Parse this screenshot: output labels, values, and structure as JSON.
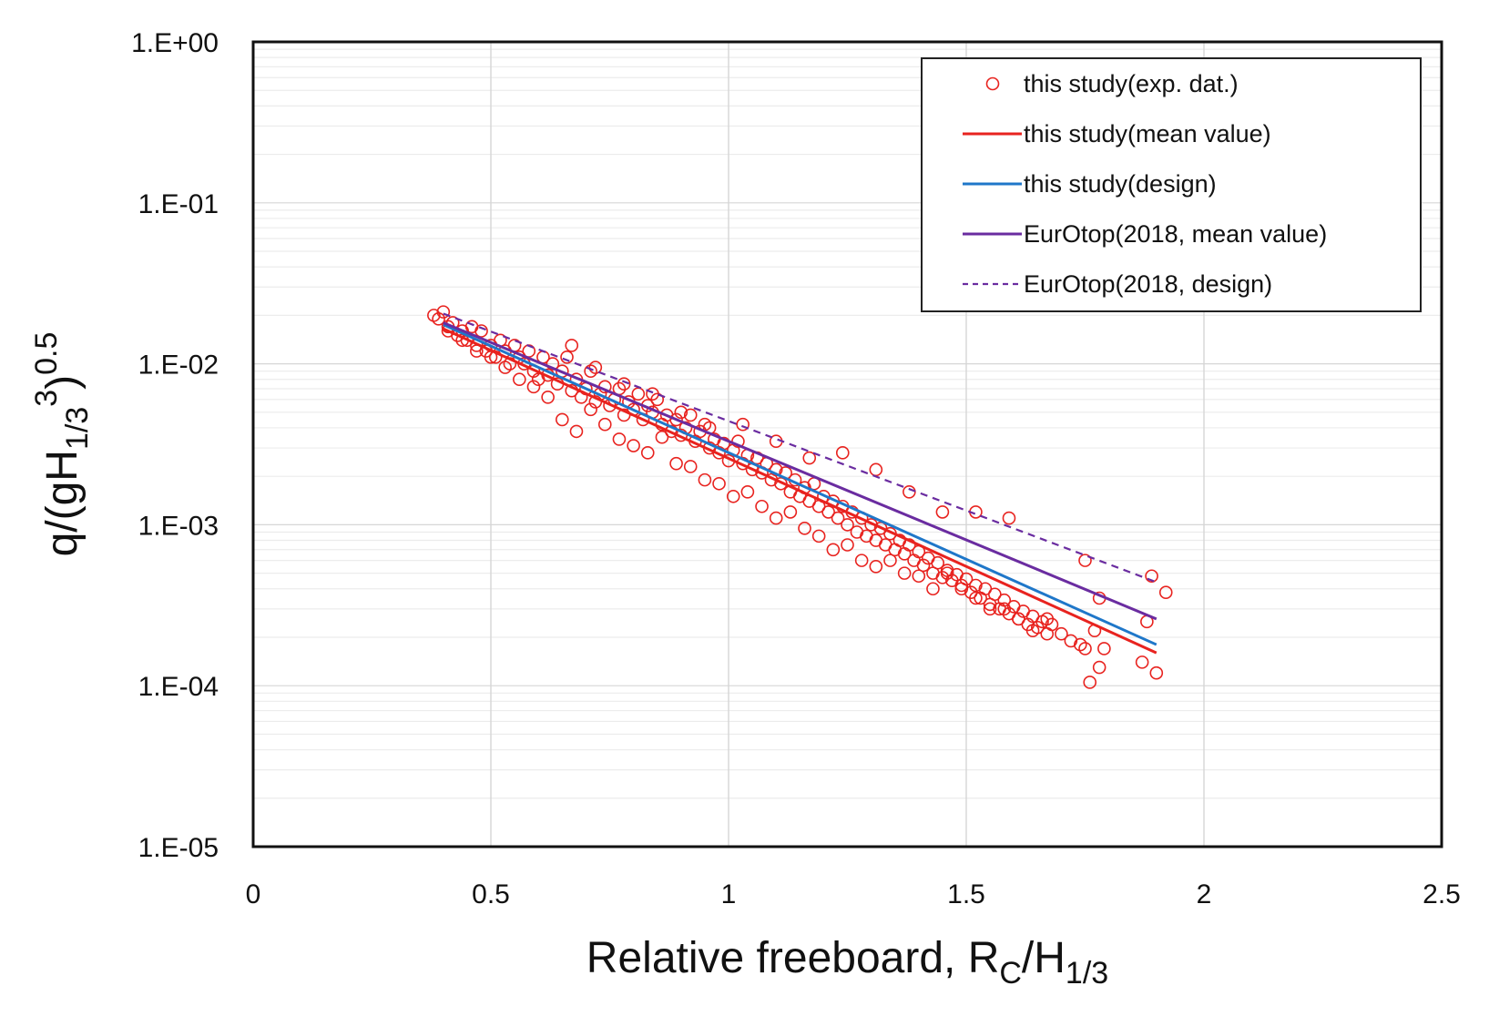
{
  "chart_data": {
    "type": "scatter",
    "ylog": true,
    "xlim": [
      0,
      2.5
    ],
    "ylim": [
      1e-05,
      1
    ],
    "xticks": [
      0,
      0.5,
      1,
      1.5,
      2,
      2.5
    ],
    "xtick_labels": [
      "0",
      "0.5",
      "1",
      "1.5",
      "2",
      "2.5"
    ],
    "yticks": [
      1,
      0.1,
      0.01,
      0.001,
      0.0001,
      1e-05
    ],
    "ytick_labels": [
      "1.E+00",
      "1.E-01",
      "1.E-02",
      "1.E-03",
      "1.E-04",
      "1.E-05"
    ],
    "xlabel": {
      "main": "Relative freeboard, R",
      "sub1": "C",
      "mid": "/H",
      "sub2": "1/3"
    },
    "ylabel": {
      "p1": "q/(gH",
      "sub": "1/3",
      "sup1": "3",
      "p2": ")",
      "sup2": "0.5"
    },
    "grid": true,
    "legend_position": "top-right",
    "colors": {
      "exp": "#e8231f",
      "mean": "#e8231f",
      "design": "#1f77c9",
      "eurotop": "#6a2ca0"
    },
    "series": [
      {
        "name": "this study(exp. dat.)",
        "kind": "scatter",
        "x": [
          0.38,
          0.39,
          0.4,
          0.41,
          0.42,
          0.43,
          0.44,
          0.45,
          0.46,
          0.47,
          0.48,
          0.49,
          0.5,
          0.51,
          0.52,
          0.53,
          0.54,
          0.55,
          0.56,
          0.57,
          0.58,
          0.59,
          0.6,
          0.61,
          0.62,
          0.63,
          0.64,
          0.65,
          0.66,
          0.67,
          0.68,
          0.69,
          0.7,
          0.71,
          0.72,
          0.73,
          0.74,
          0.75,
          0.76,
          0.77,
          0.78,
          0.79,
          0.8,
          0.81,
          0.82,
          0.83,
          0.84,
          0.85,
          0.86,
          0.87,
          0.88,
          0.89,
          0.9,
          0.91,
          0.92,
          0.93,
          0.94,
          0.95,
          0.96,
          0.97,
          0.98,
          0.99,
          1.0,
          1.01,
          1.02,
          1.03,
          1.04,
          1.05,
          1.06,
          1.07,
          1.08,
          1.09,
          1.1,
          1.11,
          1.12,
          1.13,
          1.14,
          1.15,
          1.16,
          1.17,
          1.18,
          1.19,
          1.2,
          1.21,
          1.22,
          1.23,
          1.24,
          1.25,
          1.26,
          1.27,
          1.28,
          1.29,
          1.3,
          1.31,
          1.32,
          1.33,
          1.34,
          1.35,
          1.36,
          1.37,
          1.38,
          1.39,
          1.4,
          1.41,
          1.42,
          1.43,
          1.44,
          1.45,
          1.46,
          1.47,
          1.48,
          1.49,
          1.5,
          1.51,
          1.52,
          1.53,
          1.54,
          1.55,
          1.56,
          1.57,
          1.58,
          1.59,
          1.6,
          1.61,
          1.62,
          1.63,
          1.64,
          1.65,
          1.66,
          1.67,
          1.68,
          1.7,
          1.72,
          1.74,
          1.75,
          1.76,
          1.77,
          1.78,
          1.79,
          1.87,
          1.88,
          1.9,
          1.92,
          0.41,
          0.44,
          0.47,
          0.5,
          0.53,
          0.56,
          0.59,
          0.62,
          0.65,
          0.68,
          0.71,
          0.74,
          0.77,
          0.8,
          0.83,
          0.86,
          0.89,
          0.92,
          0.95,
          0.98,
          1.01,
          1.04,
          1.07,
          1.1,
          1.13,
          1.16,
          1.19,
          1.22,
          1.25,
          1.28,
          1.31,
          1.34,
          1.37,
          1.4,
          1.43,
          1.46,
          1.49,
          1.52,
          1.55,
          1.58,
          1.61,
          1.64,
          1.67,
          1.75,
          1.78,
          1.89,
          0.67,
          0.72,
          0.78,
          0.84,
          0.9,
          0.96,
          1.03,
          1.1,
          1.17,
          1.24,
          1.31,
          1.38,
          1.45,
          1.52,
          1.59
        ],
        "y": [
          0.02,
          0.019,
          0.021,
          0.017,
          0.018,
          0.015,
          0.016,
          0.014,
          0.017,
          0.013,
          0.016,
          0.012,
          0.013,
          0.011,
          0.014,
          0.012,
          0.01,
          0.013,
          0.011,
          0.01,
          0.012,
          0.009,
          0.008,
          0.011,
          0.0085,
          0.01,
          0.0075,
          0.009,
          0.011,
          0.0068,
          0.008,
          0.0062,
          0.007,
          0.009,
          0.0058,
          0.0065,
          0.0072,
          0.0055,
          0.006,
          0.007,
          0.0048,
          0.0058,
          0.0052,
          0.0065,
          0.0045,
          0.0055,
          0.005,
          0.006,
          0.0042,
          0.0048,
          0.0038,
          0.0045,
          0.0036,
          0.004,
          0.0048,
          0.0033,
          0.0038,
          0.0042,
          0.003,
          0.0034,
          0.0028,
          0.0032,
          0.0025,
          0.0029,
          0.0033,
          0.0024,
          0.0027,
          0.0022,
          0.0026,
          0.0021,
          0.0024,
          0.0019,
          0.0022,
          0.0018,
          0.0021,
          0.0016,
          0.0019,
          0.0015,
          0.0017,
          0.0014,
          0.0018,
          0.0013,
          0.0015,
          0.0012,
          0.0014,
          0.0011,
          0.0013,
          0.001,
          0.0012,
          0.0009,
          0.0011,
          0.00085,
          0.001,
          0.0008,
          0.00095,
          0.00075,
          0.00088,
          0.0007,
          0.0008,
          0.00066,
          0.00075,
          0.0006,
          0.00068,
          0.00056,
          0.00062,
          0.0005,
          0.00058,
          0.00047,
          0.00052,
          0.00045,
          0.00049,
          0.0004,
          0.00046,
          0.00038,
          0.00042,
          0.00035,
          0.0004,
          0.00032,
          0.00037,
          0.0003,
          0.00034,
          0.00028,
          0.00031,
          0.00026,
          0.00029,
          0.00024,
          0.00027,
          0.00023,
          0.00025,
          0.00021,
          0.00024,
          0.00021,
          0.00019,
          0.00018,
          0.00017,
          0.000105,
          0.00022,
          0.00013,
          0.00017,
          0.00014,
          0.00025,
          0.00012,
          0.00038,
          0.016,
          0.014,
          0.012,
          0.011,
          0.0095,
          0.008,
          0.0072,
          0.0062,
          0.0045,
          0.0038,
          0.0052,
          0.0042,
          0.0034,
          0.0031,
          0.0028,
          0.0035,
          0.0024,
          0.0023,
          0.0019,
          0.0018,
          0.0015,
          0.0016,
          0.0013,
          0.0011,
          0.0012,
          0.00095,
          0.00085,
          0.0007,
          0.00075,
          0.0006,
          0.00055,
          0.0006,
          0.0005,
          0.00048,
          0.0004,
          0.0005,
          0.00042,
          0.00035,
          0.0003,
          0.0003,
          0.00026,
          0.00022,
          0.00026,
          0.0006,
          0.00035,
          0.00048,
          0.013,
          0.0095,
          0.0075,
          0.0065,
          0.005,
          0.004,
          0.0042,
          0.0033,
          0.0026,
          0.0028,
          0.0022,
          0.0016,
          0.0012,
          0.0012,
          0.0011
        ]
      },
      {
        "name": "this study(mean value)",
        "kind": "line",
        "style": "solid",
        "x": [
          0.4,
          1.9
        ],
        "y": [
          0.0165,
          0.00016
        ]
      },
      {
        "name": "this study(design)",
        "kind": "line",
        "style": "solid",
        "x": [
          0.4,
          1.9
        ],
        "y": [
          0.0175,
          0.00018
        ]
      },
      {
        "name": "EurOtop(2018, mean value)",
        "kind": "line",
        "style": "solid",
        "x": [
          0.4,
          1.9
        ],
        "y": [
          0.018,
          0.00026
        ]
      },
      {
        "name": "EurOtop(2018, design)",
        "kind": "line",
        "style": "dashed",
        "x": [
          0.4,
          1.9
        ],
        "y": [
          0.0205,
          0.00044
        ]
      }
    ]
  }
}
